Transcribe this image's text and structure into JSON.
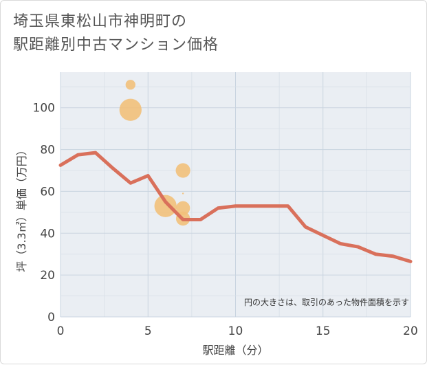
{
  "chart_data": {
    "type": "scatter+line",
    "title_line1": "埼玉県東松山市神明町の",
    "title_line2": "駅距離別中古マンション価格",
    "xlabel": "駅距離（分）",
    "ylabel": "坪（3.3㎡）単価（万円）",
    "xlim": [
      0,
      20
    ],
    "ylim": [
      0,
      117
    ],
    "xticks": [
      0,
      5,
      10,
      15,
      20
    ],
    "yticks": [
      0,
      20,
      40,
      60,
      80,
      100
    ],
    "grid": true,
    "note": "円の大きさは、取引のあった物件面積を示す",
    "colors": {
      "line": "#d9705b",
      "bubble": "#f2c07a",
      "grid": "#c9d4e0",
      "panel": "#eaeef3"
    },
    "line_series": {
      "name": "average",
      "x": [
        0,
        1,
        2,
        3,
        4,
        5,
        6,
        7,
        8,
        9,
        10,
        11,
        12,
        13,
        14,
        15,
        16,
        17,
        18,
        19,
        20
      ],
      "y": [
        72.5,
        77.5,
        78.5,
        71,
        64,
        67.5,
        55,
        46.5,
        46.5,
        52,
        53,
        53,
        53,
        53,
        43,
        39,
        35,
        33.5,
        30,
        29,
        26.5
      ]
    },
    "bubbles": [
      {
        "x": 4,
        "y": 111,
        "size": 3
      },
      {
        "x": 4,
        "y": 99,
        "size": 30
      },
      {
        "x": 7,
        "y": 70,
        "size": 10
      },
      {
        "x": 7,
        "y": 59,
        "size": 1
      },
      {
        "x": 6,
        "y": 53,
        "size": 30
      },
      {
        "x": 7,
        "y": 52,
        "size": 9
      },
      {
        "x": 7,
        "y": 47,
        "size": 9
      }
    ]
  }
}
